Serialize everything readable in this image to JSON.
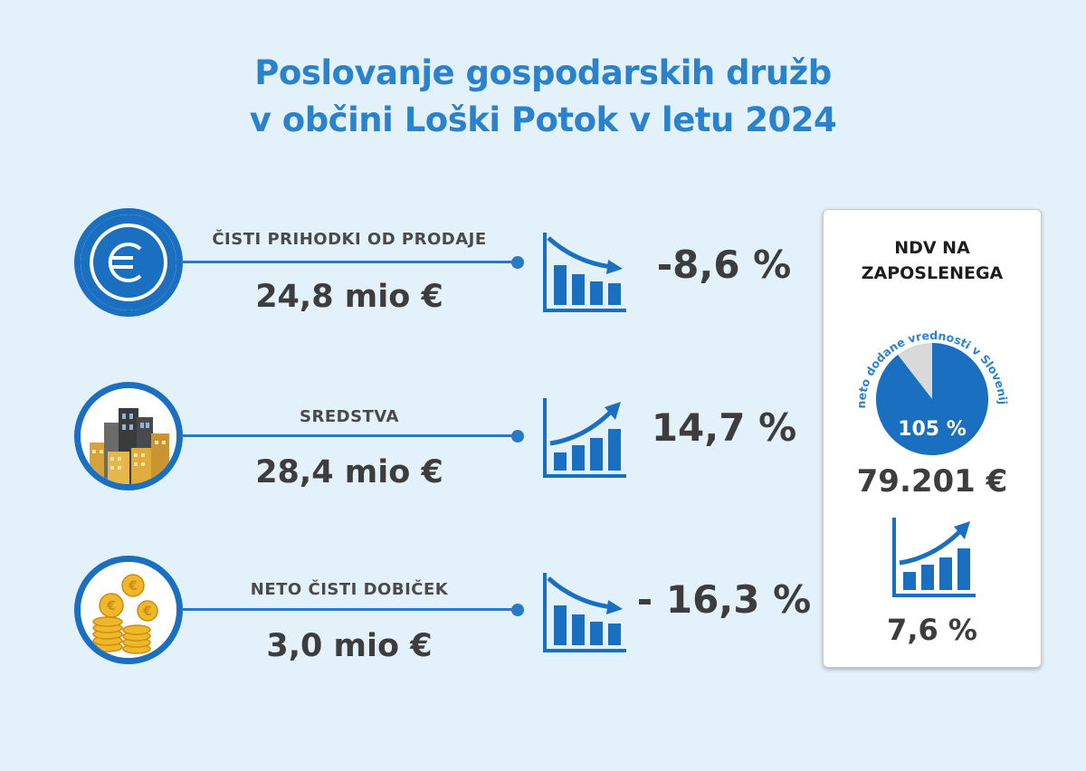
{
  "title": {
    "line1": "Poslovanje gospodarskih družb",
    "line2": "v občini Loški Potok v letu 2024"
  },
  "rows": [
    {
      "label": "ČISTI PRIHODKI OD PRODAJE",
      "value": "24,8 mio €",
      "change": "-8,6 %",
      "trend": "down",
      "icon": "euro-icon"
    },
    {
      "label": "SREDSTVA",
      "value": "28,4 mio €",
      "change": "14,7 %",
      "trend": "up",
      "icon": "buildings-icon"
    },
    {
      "label": "NETO ČISTI DOBIČEK",
      "value": "3,0 mio €",
      "change": "- 16,3 %",
      "trend": "down",
      "icon": "coins-icon"
    }
  ],
  "ndv": {
    "title_line1": "NDV NA",
    "title_line2": "ZAPOSLENEGA",
    "pie_caption": "neto dodane vrednosti v Sloveniji",
    "pie_label": "105 %",
    "pie_fraction": 0.895,
    "value": "79.201 €",
    "change": "7,6 %",
    "trend": "up"
  },
  "colors": {
    "background": "#e3f1fb",
    "title": "#2b82cc",
    "accent": "#1a6fc0",
    "text": "#3d3d3d"
  }
}
